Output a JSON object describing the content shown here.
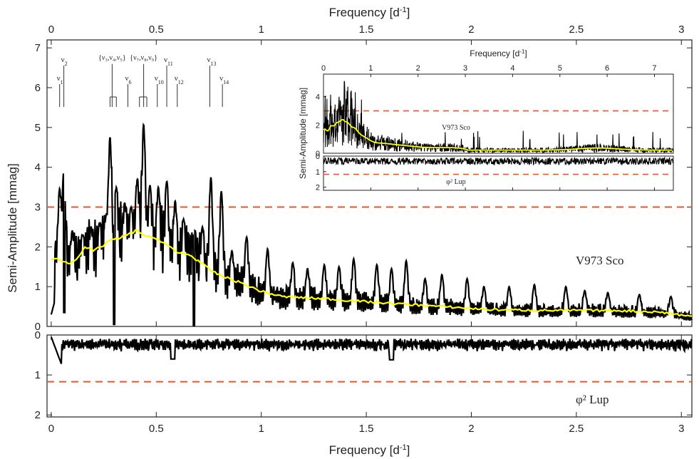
{
  "colors": {
    "signal": "#000000",
    "threshold": "#e8572a",
    "smooth": "#ffff00",
    "axis": "#222222"
  },
  "chart_data": {
    "type": "line",
    "x_axis_label": "Frequency [d",
    "x_axis_label_sup": "-1",
    "x_axis_label_end": "]",
    "y_axis_label": "Semi-Amplitude [mmag]",
    "x_range": [
      -0.02,
      3.05
    ],
    "x_ticks": [
      "0",
      "0.5",
      "1",
      "1.5",
      "2",
      "2.5",
      "3"
    ],
    "top_panel": {
      "star_label": "V973 Sco",
      "y_range": [
        0,
        7.2
      ],
      "y_ticks": [
        "0",
        "1",
        "2",
        "3",
        "4",
        "5",
        "6",
        "7"
      ],
      "threshold": 3.0,
      "peaks": [
        {
          "f": 0.04,
          "a": 3.45
        },
        {
          "f": 0.06,
          "a": 3.95
        },
        {
          "f": 0.1,
          "a": 2.4
        },
        {
          "f": 0.15,
          "a": 2.3
        },
        {
          "f": 0.19,
          "a": 2.5
        },
        {
          "f": 0.23,
          "a": 2.6
        },
        {
          "f": 0.26,
          "a": 2.7
        },
        {
          "f": 0.28,
          "a": 4.75
        },
        {
          "f": 0.31,
          "a": 3.5
        },
        {
          "f": 0.35,
          "a": 3.1
        },
        {
          "f": 0.38,
          "a": 3.0
        },
        {
          "f": 0.41,
          "a": 3.7
        },
        {
          "f": 0.44,
          "a": 5.08
        },
        {
          "f": 0.47,
          "a": 3.55
        },
        {
          "f": 0.51,
          "a": 3.5
        },
        {
          "f": 0.55,
          "a": 3.65
        },
        {
          "f": 0.59,
          "a": 3.15
        },
        {
          "f": 0.63,
          "a": 2.7
        },
        {
          "f": 0.68,
          "a": 2.6
        },
        {
          "f": 0.72,
          "a": 2.5
        },
        {
          "f": 0.76,
          "a": 3.75
        },
        {
          "f": 0.81,
          "a": 3.4
        },
        {
          "f": 0.86,
          "a": 1.9
        },
        {
          "f": 0.93,
          "a": 2.25
        },
        {
          "f": 1.03,
          "a": 1.95
        },
        {
          "f": 1.15,
          "a": 1.6
        },
        {
          "f": 1.22,
          "a": 1.45
        },
        {
          "f": 1.3,
          "a": 1.55
        },
        {
          "f": 1.37,
          "a": 1.5
        },
        {
          "f": 1.44,
          "a": 1.7
        },
        {
          "f": 1.55,
          "a": 1.55
        },
        {
          "f": 1.62,
          "a": 1.45
        },
        {
          "f": 1.69,
          "a": 1.65
        },
        {
          "f": 1.78,
          "a": 1.2
        },
        {
          "f": 1.86,
          "a": 1.3
        },
        {
          "f": 1.98,
          "a": 1.2
        },
        {
          "f": 2.06,
          "a": 1.0
        },
        {
          "f": 2.18,
          "a": 1.0
        },
        {
          "f": 2.3,
          "a": 1.05
        },
        {
          "f": 2.45,
          "a": 1.0
        },
        {
          "f": 2.54,
          "a": 0.9
        },
        {
          "f": 2.65,
          "a": 0.85
        },
        {
          "f": 2.8,
          "a": 0.8
        },
        {
          "f": 2.95,
          "a": 0.75
        }
      ],
      "smooth_curve": [
        {
          "f": 0.0,
          "a": 1.65
        },
        {
          "f": 0.03,
          "a": 1.72
        },
        {
          "f": 0.06,
          "a": 1.62
        },
        {
          "f": 0.09,
          "a": 1.58
        },
        {
          "f": 0.12,
          "a": 1.7
        },
        {
          "f": 0.16,
          "a": 2.0
        },
        {
          "f": 0.2,
          "a": 1.9
        },
        {
          "f": 0.24,
          "a": 2.0
        },
        {
          "f": 0.28,
          "a": 2.18
        },
        {
          "f": 0.32,
          "a": 2.2
        },
        {
          "f": 0.36,
          "a": 2.3
        },
        {
          "f": 0.41,
          "a": 2.42
        },
        {
          "f": 0.45,
          "a": 2.25
        },
        {
          "f": 0.5,
          "a": 2.22
        },
        {
          "f": 0.55,
          "a": 2.05
        },
        {
          "f": 0.6,
          "a": 1.85
        },
        {
          "f": 0.65,
          "a": 1.82
        },
        {
          "f": 0.7,
          "a": 1.65
        },
        {
          "f": 0.76,
          "a": 1.4
        },
        {
          "f": 0.82,
          "a": 1.25
        },
        {
          "f": 0.9,
          "a": 1.1
        },
        {
          "f": 1.0,
          "a": 0.88
        },
        {
          "f": 1.1,
          "a": 0.75
        },
        {
          "f": 1.2,
          "a": 0.72
        },
        {
          "f": 1.3,
          "a": 0.7
        },
        {
          "f": 1.5,
          "a": 0.62
        },
        {
          "f": 1.8,
          "a": 0.52
        },
        {
          "f": 2.1,
          "a": 0.42
        },
        {
          "f": 2.4,
          "a": 0.4
        },
        {
          "f": 2.7,
          "a": 0.4
        },
        {
          "f": 2.9,
          "a": 0.36
        },
        {
          "f": 3.05,
          "a": 0.25
        }
      ],
      "frequency_markers": [
        {
          "name": "ν",
          "sub": "1",
          "f": 0.04,
          "level": "low"
        },
        {
          "name": "ν",
          "sub": "2",
          "f": 0.06,
          "level": "high"
        },
        {
          "name": "ν",
          "sub": "6",
          "f": 0.365,
          "level": "low"
        },
        {
          "name": "ν",
          "sub": "10",
          "f": 0.505,
          "level": "low"
        },
        {
          "name": "ν",
          "sub": "11",
          "f": 0.55,
          "level": "high"
        },
        {
          "name": "ν",
          "sub": "12",
          "f": 0.6,
          "level": "low"
        },
        {
          "name": "ν",
          "sub": "13",
          "f": 0.755,
          "level": "high"
        },
        {
          "name": "ν",
          "sub": "14",
          "f": 0.815,
          "level": "low"
        }
      ],
      "group_markers": [
        {
          "label": "{ν₃,ν₄,ν₅}",
          "f_center": 0.29,
          "members": [
            0.28,
            0.29,
            0.31
          ]
        },
        {
          "label": "{ν₇,ν₈,ν₉}",
          "f_center": 0.44,
          "members": [
            0.42,
            0.44,
            0.455
          ]
        }
      ]
    },
    "bottom_panel": {
      "star_label": "φ² Lup",
      "y_range": [
        0,
        2.05
      ],
      "y_ticks": [
        "0",
        "1",
        "2"
      ],
      "threshold": 1.17,
      "noise_level": 0.3
    },
    "inset": {
      "x_axis_label": "Frequency [d",
      "x_axis_label_sup": "-1",
      "x_axis_label_end": "]",
      "y_axis_label": "Semi-Amplitude [mmag]",
      "x_range": [
        0,
        7.4
      ],
      "x_ticks": [
        "0",
        "1",
        "2",
        "3",
        "4",
        "5",
        "6",
        "7"
      ],
      "top": {
        "star_label": "V973 Sco",
        "y_range": [
          0,
          5.6
        ],
        "y_ticks": [
          "0",
          "2",
          "4"
        ],
        "threshold": 3.0
      },
      "bottom": {
        "star_label": "φ² Lup",
        "y_range": [
          0,
          2.2
        ],
        "y_ticks": [
          "0",
          "1",
          "2"
        ],
        "threshold": 1.17
      }
    }
  }
}
